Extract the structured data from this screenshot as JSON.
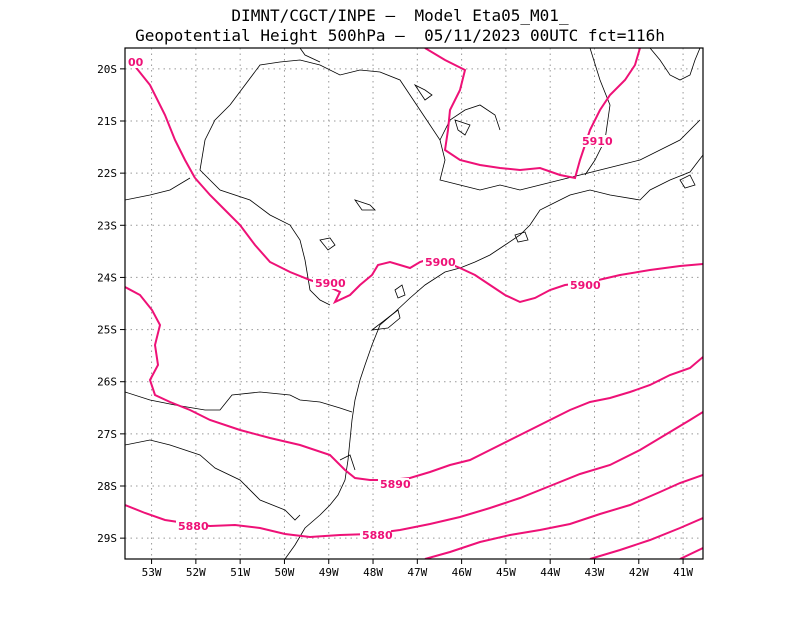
{
  "title": {
    "line1": "DIMNT/CGCT/INPE –  Model Eta05_M01_",
    "line2": "Geopotential Height 500hPa –  05/11/2023 00UTC fct=116h"
  },
  "colors": {
    "contour": "#ee1177",
    "coast": "#000000",
    "grid": "#999999"
  },
  "axes": {
    "lat_labels": [
      "20S",
      "21S",
      "22S",
      "23S",
      "24S",
      "25S",
      "26S",
      "27S",
      "28S",
      "29S"
    ],
    "lon_labels": [
      "53W",
      "52W",
      "51W",
      "50W",
      "49W",
      "48W",
      "47W",
      "46W",
      "45W",
      "44W",
      "43W",
      "42W",
      "41W"
    ],
    "lat_range": [
      -29.4,
      -19.6
    ],
    "lon_range": [
      -53.6,
      -40.55
    ],
    "grid": true
  },
  "contour_labels": [
    {
      "text": "00"
    },
    {
      "text": "5910"
    },
    {
      "text": "5900"
    },
    {
      "text": "5900"
    },
    {
      "text": "5900"
    },
    {
      "text": "5890"
    },
    {
      "text": "5880"
    },
    {
      "text": "5880"
    }
  ]
}
